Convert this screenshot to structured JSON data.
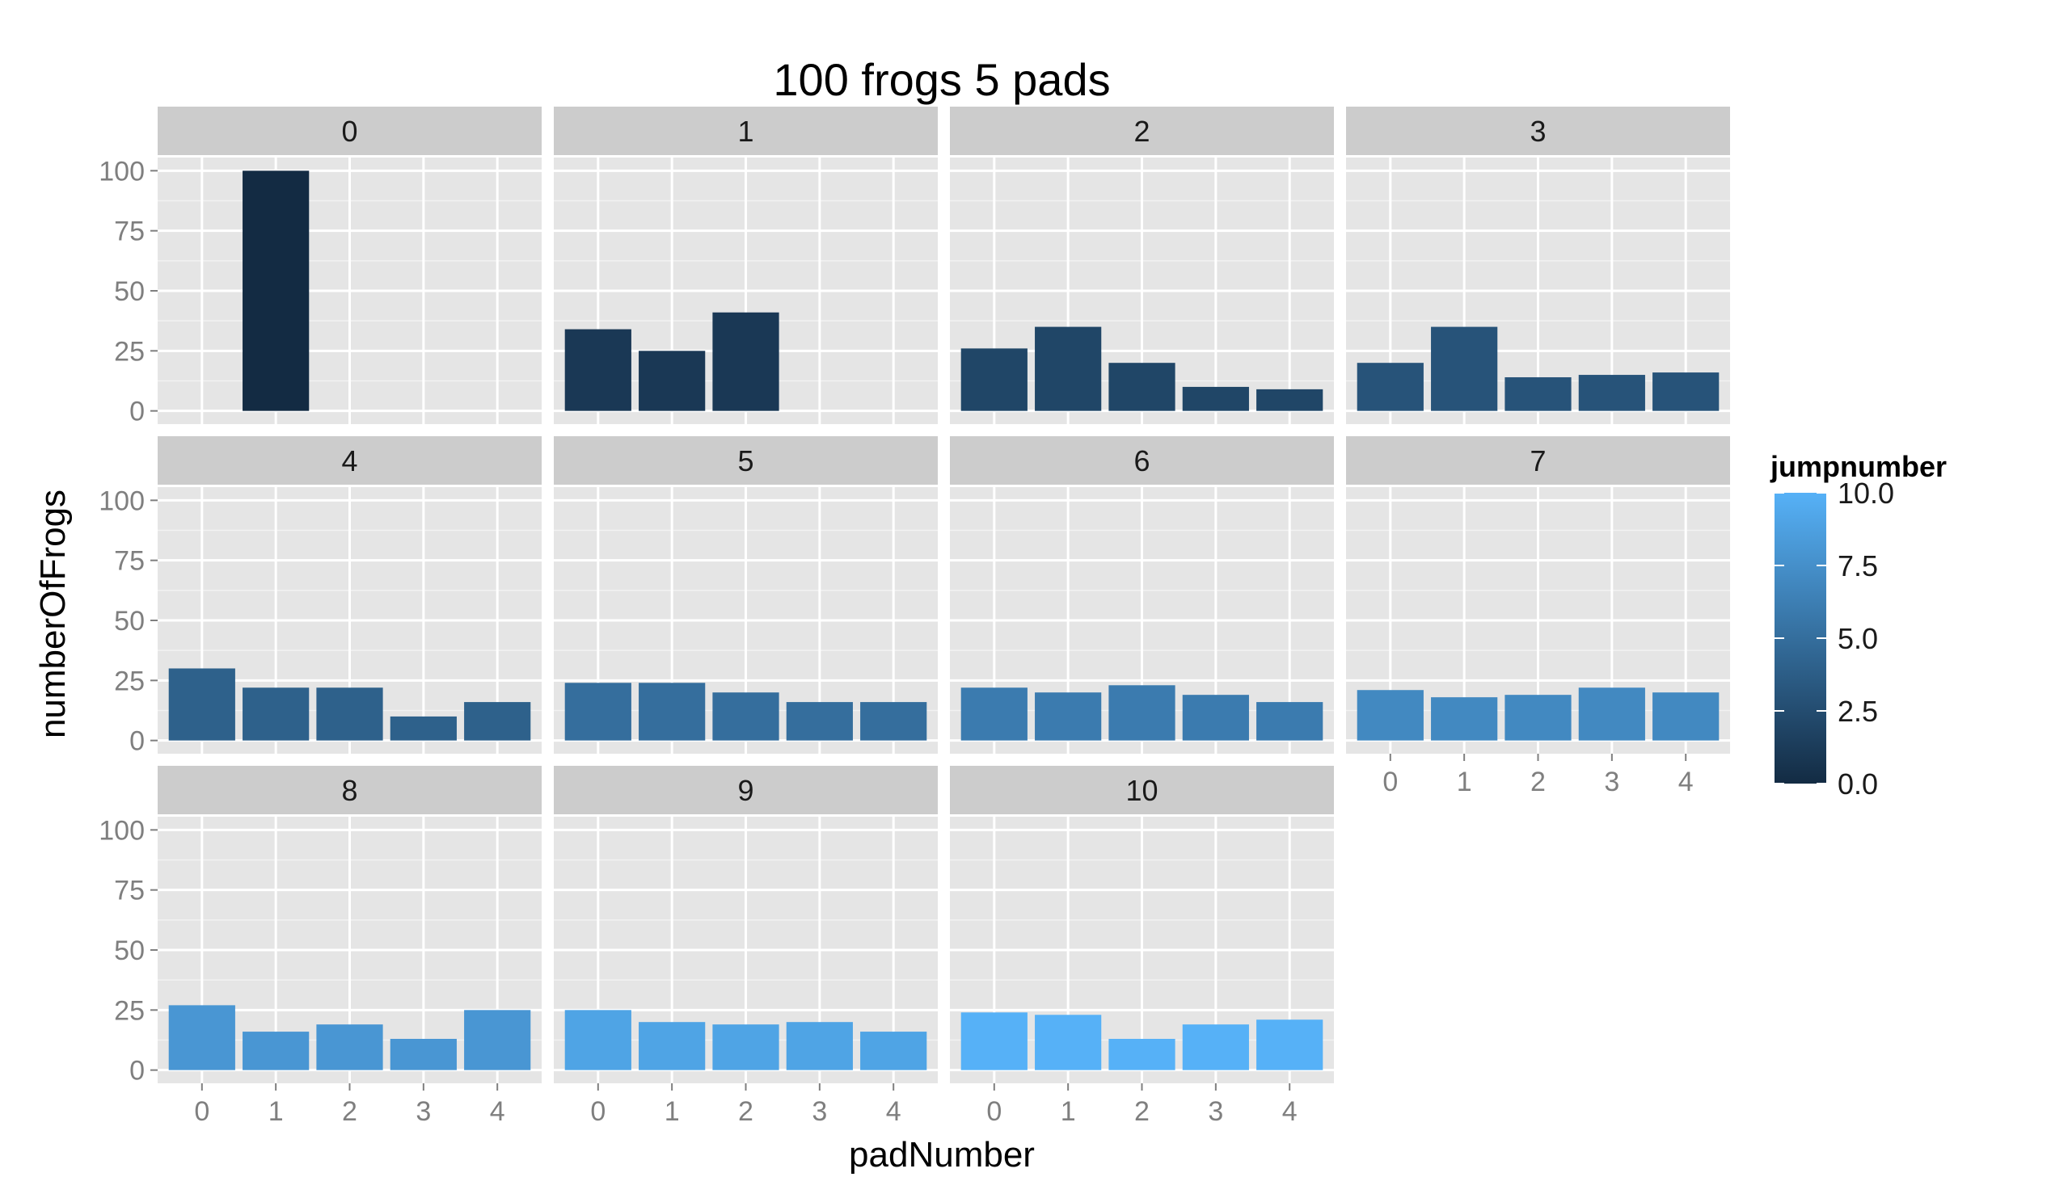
{
  "chart_data": {
    "type": "bar",
    "title": "100 frogs 5 pads",
    "xlabel": "padNumber",
    "ylabel": "numberOfFrogs",
    "facet_by": "jumpnumber",
    "facet_columns": 4,
    "categories": [
      0,
      1,
      2,
      3,
      4
    ],
    "ylim": [
      0,
      100
    ],
    "yticks": [
      0,
      25,
      50,
      75,
      100
    ],
    "grid": true,
    "legend": {
      "title": "jumpnumber",
      "placement": "right",
      "type": "colorbar",
      "range": [
        0,
        10
      ],
      "ticks": [
        "0.0",
        "2.5",
        "5.0",
        "7.5",
        "10.0"
      ],
      "low_color": "#132B43",
      "high_color": "#56B1F7"
    },
    "panel_background": "#e5e5e5",
    "strip_background": "#cccccc",
    "facets": [
      {
        "jump": 0,
        "label": "0",
        "values": [
          0,
          100,
          0,
          0,
          0
        ]
      },
      {
        "jump": 1,
        "label": "1",
        "values": [
          34,
          25,
          41,
          0,
          0
        ]
      },
      {
        "jump": 2,
        "label": "2",
        "values": [
          26,
          35,
          20,
          10,
          9
        ]
      },
      {
        "jump": 3,
        "label": "3",
        "values": [
          20,
          35,
          14,
          15,
          16
        ]
      },
      {
        "jump": 4,
        "label": "4",
        "values": [
          30,
          22,
          22,
          10,
          16
        ]
      },
      {
        "jump": 5,
        "label": "5",
        "values": [
          24,
          24,
          20,
          16,
          16
        ]
      },
      {
        "jump": 6,
        "label": "6",
        "values": [
          22,
          20,
          23,
          19,
          16
        ]
      },
      {
        "jump": 7,
        "label": "7",
        "values": [
          21,
          18,
          19,
          22,
          20
        ]
      },
      {
        "jump": 8,
        "label": "8",
        "values": [
          27,
          16,
          19,
          13,
          25
        ]
      },
      {
        "jump": 9,
        "label": "9",
        "values": [
          25,
          20,
          19,
          20,
          16
        ]
      },
      {
        "jump": 10,
        "label": "10",
        "values": [
          24,
          23,
          13,
          19,
          21
        ]
      }
    ]
  }
}
